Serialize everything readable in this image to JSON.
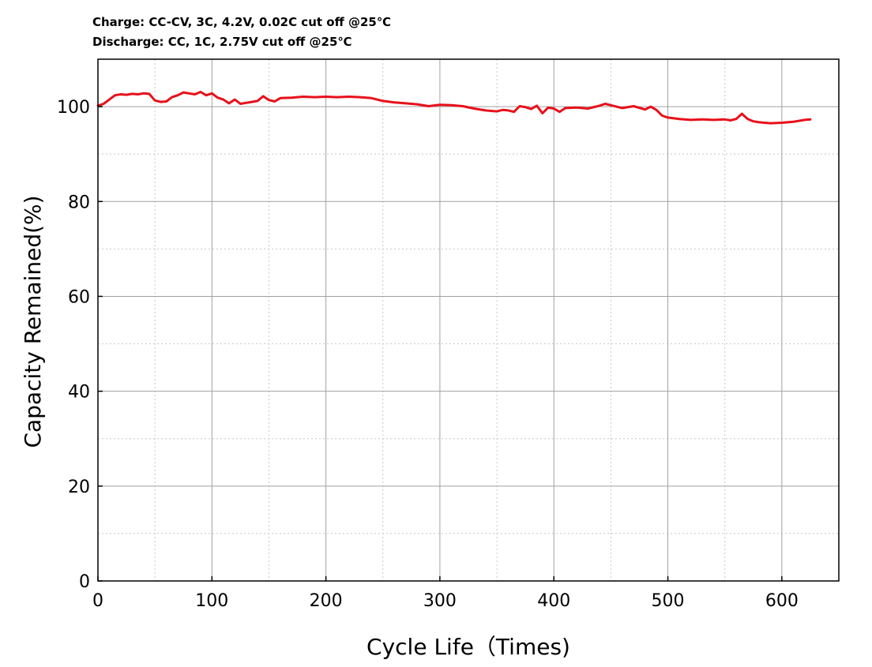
{
  "conditions": {
    "charge": "Charge: CC-CV, 3C, 4.2V, 0.02C cut off @25℃",
    "discharge": "Discharge: CC, 1C, 2.75V cut off @25℃"
  },
  "colors": {
    "series": "#e8101a",
    "grid_major": "#a0a0a0",
    "grid_minor": "#c8c8c8",
    "axis": "#000000"
  },
  "chart_data": {
    "type": "line",
    "xlabel": "Cycle Life（Times)",
    "ylabel": "Capacity Remained(%)",
    "xlim": [
      0,
      650
    ],
    "ylim": [
      0,
      110
    ],
    "grid": true,
    "x_ticks": [
      0,
      100,
      200,
      300,
      400,
      500,
      600
    ],
    "x_tick_labels": [
      "0",
      "100",
      "200",
      "300",
      "400",
      "500",
      "600"
    ],
    "y_ticks": [
      0,
      20,
      40,
      60,
      80,
      100
    ],
    "y_tick_labels": [
      "0",
      "20",
      "40",
      "60",
      "80",
      "100"
    ],
    "series": [
      {
        "x": [
          0,
          5,
          10,
          15,
          20,
          25,
          30,
          35,
          40,
          45,
          50,
          55,
          60,
          65,
          70,
          75,
          80,
          85,
          90,
          95,
          100,
          105,
          110,
          115,
          120,
          125,
          130,
          135,
          140,
          145,
          150,
          155,
          160,
          170,
          180,
          190,
          200,
          210,
          220,
          230,
          240,
          250,
          260,
          270,
          280,
          290,
          300,
          310,
          320,
          330,
          340,
          350,
          355,
          360,
          365,
          370,
          375,
          380,
          385,
          390,
          395,
          400,
          405,
          410,
          420,
          430,
          440,
          445,
          450,
          460,
          470,
          480,
          485,
          490,
          495,
          500,
          510,
          520,
          530,
          540,
          550,
          555,
          560,
          565,
          570,
          575,
          580,
          590,
          600,
          610,
          620,
          625
        ],
        "y": [
          100.2,
          100.6,
          101.5,
          102.4,
          102.6,
          102.5,
          102.7,
          102.6,
          102.8,
          102.7,
          101.3,
          101.0,
          101.1,
          102.0,
          102.4,
          103.0,
          102.8,
          102.6,
          103.1,
          102.4,
          102.8,
          101.9,
          101.5,
          100.7,
          101.5,
          100.6,
          100.8,
          101.0,
          101.2,
          102.2,
          101.4,
          101.1,
          101.8,
          101.9,
          102.1,
          102.0,
          102.1,
          102.0,
          102.1,
          102.0,
          101.8,
          101.2,
          100.9,
          100.7,
          100.5,
          100.1,
          100.4,
          100.3,
          100.1,
          99.6,
          99.2,
          99.0,
          99.3,
          99.2,
          98.9,
          100.1,
          99.9,
          99.5,
          100.2,
          98.6,
          99.8,
          99.6,
          98.9,
          99.7,
          99.8,
          99.6,
          100.2,
          100.6,
          100.3,
          99.7,
          100.1,
          99.4,
          100.0,
          99.3,
          98.1,
          97.7,
          97.4,
          97.2,
          97.3,
          97.2,
          97.3,
          97.1,
          97.4,
          98.5,
          97.4,
          96.9,
          96.7,
          96.5,
          96.6,
          96.8,
          97.2,
          97.3
        ]
      }
    ]
  }
}
